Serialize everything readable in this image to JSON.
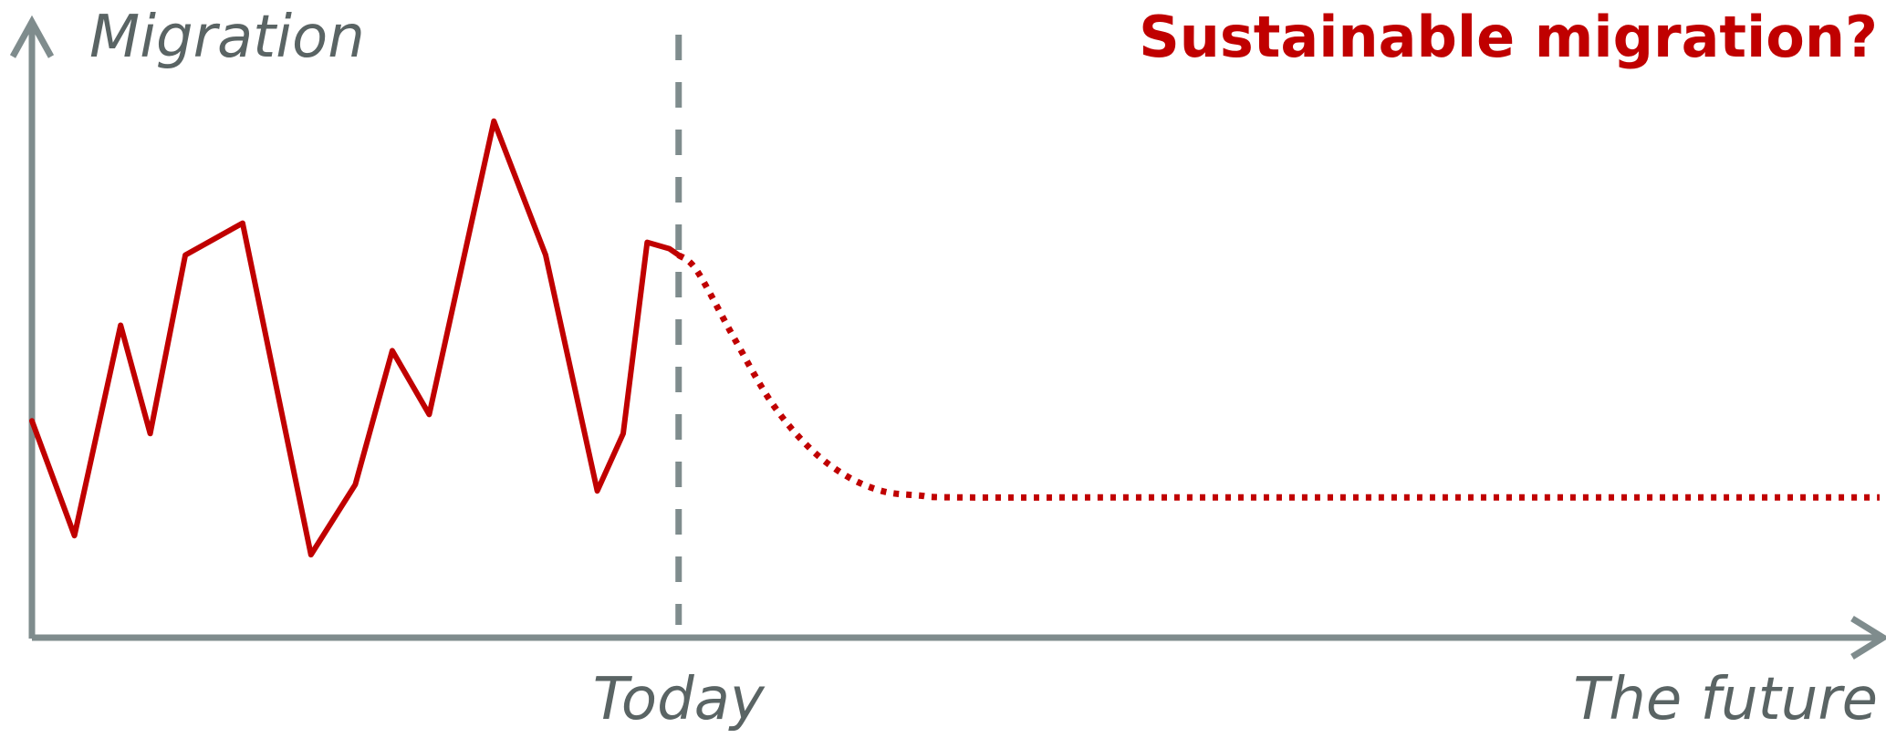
{
  "chart_data": {
    "type": "line",
    "title": "Sustainable migration?",
    "ylabel": "Migration",
    "x_markers": {
      "today": "Today",
      "future": "The future"
    },
    "xlim": [
      0,
      100
    ],
    "ylim": [
      0,
      100
    ],
    "today_x": 35,
    "grid": false,
    "legend": "none",
    "series": [
      {
        "style": "solid",
        "x": [
          0,
          2.3,
          4.8,
          6.4,
          8.3,
          11.4,
          15.1,
          17.5,
          19.5,
          21.5,
          25.0,
          27.8,
          30.6,
          32.0,
          33.3,
          34.5,
          35.0
        ],
        "y": [
          34,
          16,
          49,
          32,
          60,
          65,
          13,
          24,
          45,
          35,
          81,
          60,
          23,
          32,
          62,
          61,
          60
        ]
      },
      {
        "style": "dotted",
        "x": [
          35.0,
          36.0,
          38.0,
          40.0,
          42.0,
          44.0,
          46.0,
          48.0,
          50.0,
          60.0,
          75.0,
          100.0
        ],
        "y": [
          60,
          57.5,
          47,
          37,
          30,
          25.5,
          23,
          22.3,
          22.0,
          22.0,
          22.0,
          22.0
        ]
      }
    ],
    "colors": {
      "series": "#c00000",
      "axes": "#7f8c8d",
      "labels": "#5a6464",
      "title": "#c00000"
    }
  }
}
